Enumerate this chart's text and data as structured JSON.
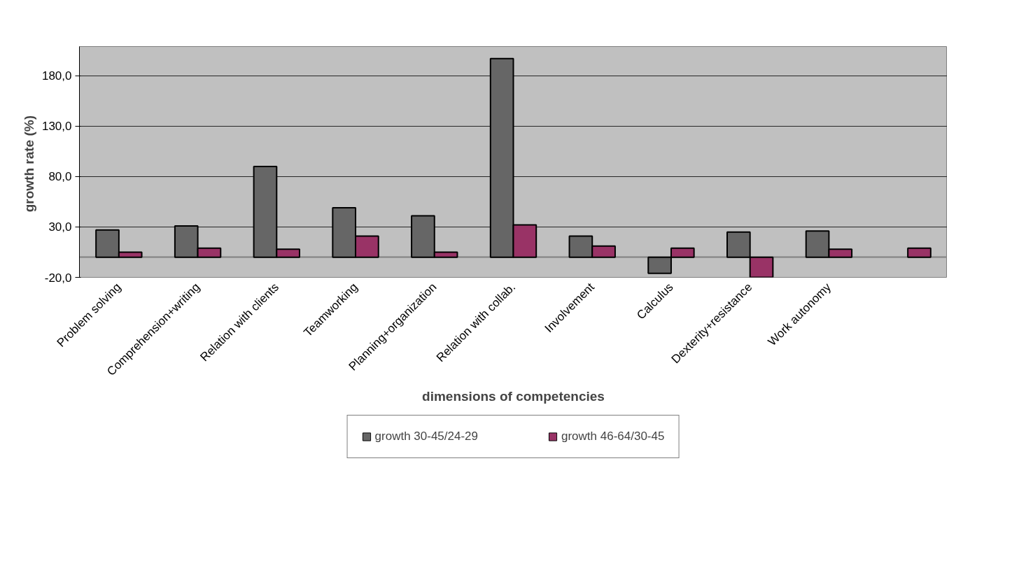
{
  "chart_data": {
    "type": "bar",
    "xlabel": "dimensions of competencies",
    "ylabel": "growth rate  (%)",
    "categories": [
      "Problem solving",
      "Comprehension+writing",
      "Relation with clients",
      "Teamworking",
      "Planning+organization",
      "Relation with collab.",
      "Involvement",
      "Calculus",
      "Dexterity+resistance",
      "Work autonomy",
      null
    ],
    "series": [
      {
        "name": "growth 30-45/24-29",
        "color": "#666666",
        "values": [
          27,
          31,
          90,
          49,
          41,
          197,
          21,
          -16,
          25,
          26,
          null
        ]
      },
      {
        "name": "growth 46-64/30-45",
        "color": "#993366",
        "values": [
          5,
          9,
          8,
          21,
          5,
          32,
          11,
          9,
          -20,
          8,
          9
        ]
      }
    ],
    "ylim": [
      -20,
      209
    ],
    "yticks": [
      {
        "value": -20,
        "label": "-20,0"
      },
      {
        "value": 30,
        "label": "30,0"
      },
      {
        "value": 80,
        "label": "80,0"
      },
      {
        "value": 130,
        "label": "130,0"
      },
      {
        "value": 180,
        "label": "180,0"
      }
    ],
    "grid": "y",
    "legend": "bottom"
  }
}
